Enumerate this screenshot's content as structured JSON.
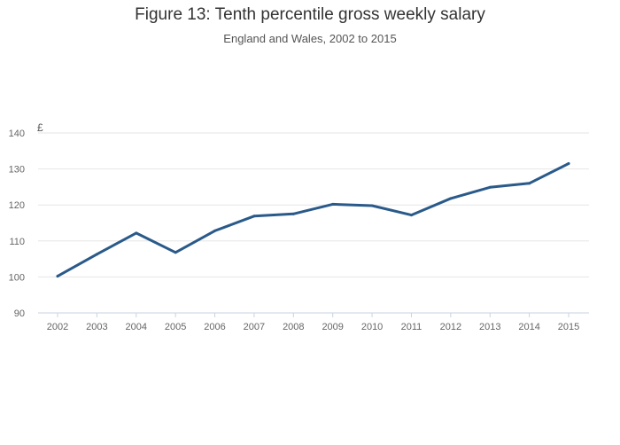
{
  "chart_data": {
    "type": "line",
    "title": "Figure 13: Tenth percentile gross weekly salary",
    "subtitle": "England and Wales, 2002 to 2015",
    "ylabel": "£",
    "xlabel": "",
    "x": [
      "2002",
      "2003",
      "2004",
      "2005",
      "2006",
      "2007",
      "2008",
      "2009",
      "2010",
      "2011",
      "2012",
      "2013",
      "2014",
      "2015"
    ],
    "series": [
      {
        "values": [
          100.2,
          106.3,
          112.2,
          106.8,
          112.8,
          116.9,
          117.5,
          120.2,
          119.8,
          117.2,
          121.8,
          124.9,
          126.0,
          131.5
        ],
        "color": "#2a5a8a"
      }
    ],
    "ylim": [
      90,
      140
    ],
    "yticks": [
      90,
      100,
      110,
      120,
      130,
      140
    ],
    "grid": true,
    "legend": "none"
  }
}
